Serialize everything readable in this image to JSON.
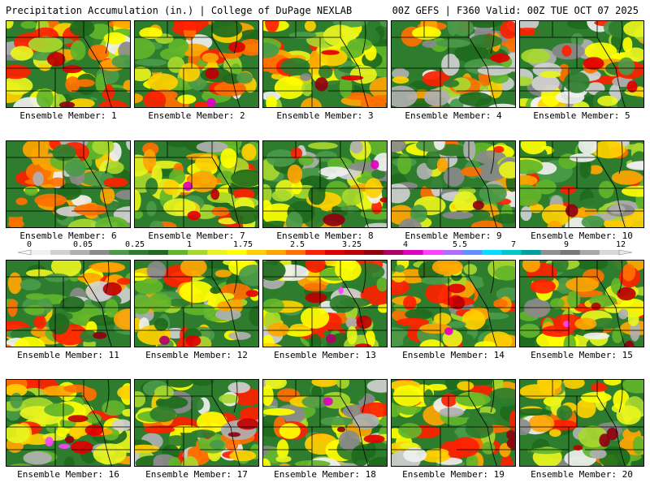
{
  "header": {
    "title_left": "Precipitation Accumulation (in.) | College of DuPage NEXLAB",
    "title_right": "00Z GEFS | F360 Valid: 00Z TUE OCT 07 2025"
  },
  "colors": {
    "scale": [
      "#f0f0f0",
      "#d0d0d0",
      "#b0b0b0",
      "#8a8a8a",
      "#4a9a4a",
      "#2e7d2e",
      "#1e6a1e",
      "#62b52a",
      "#a8d82e",
      "#e8f41e",
      "#ffff00",
      "#ffd000",
      "#ffa500",
      "#ff7000",
      "#ff2000",
      "#e00000",
      "#c00000",
      "#900010",
      "#b0006a",
      "#e000c0",
      "#ff40ff",
      "#b06cff",
      "#6090ff",
      "#00e0ff",
      "#00c8c8",
      "#00a0a0",
      "#909090",
      "#787878",
      "#a8a8a8",
      "#d8d8d8"
    ]
  },
  "legend": {
    "labels": [
      "0",
      "0.05",
      "0.25",
      "1",
      "1.75",
      "2.5",
      "3.25",
      "4",
      "5.5",
      "7",
      "9",
      "12"
    ]
  },
  "panels": [
    {
      "label": "Ensemble Member: 1"
    },
    {
      "label": "Ensemble Member: 2"
    },
    {
      "label": "Ensemble Member: 3"
    },
    {
      "label": "Ensemble Member: 4"
    },
    {
      "label": "Ensemble Member: 5"
    },
    {
      "label": "Ensemble Member: 6"
    },
    {
      "label": "Ensemble Member: 7"
    },
    {
      "label": "Ensemble Member: 8"
    },
    {
      "label": "Ensemble Member: 9"
    },
    {
      "label": "Ensemble Member: 10"
    },
    {
      "label": "Ensemble Member: 11"
    },
    {
      "label": "Ensemble Member: 12"
    },
    {
      "label": "Ensemble Member: 13"
    },
    {
      "label": "Ensemble Member: 14"
    },
    {
      "label": "Ensemble Member: 15"
    },
    {
      "label": "Ensemble Member: 16"
    },
    {
      "label": "Ensemble Member: 17"
    },
    {
      "label": "Ensemble Member: 18"
    },
    {
      "label": "Ensemble Member: 19"
    },
    {
      "label": "Ensemble Member: 20"
    }
  ]
}
